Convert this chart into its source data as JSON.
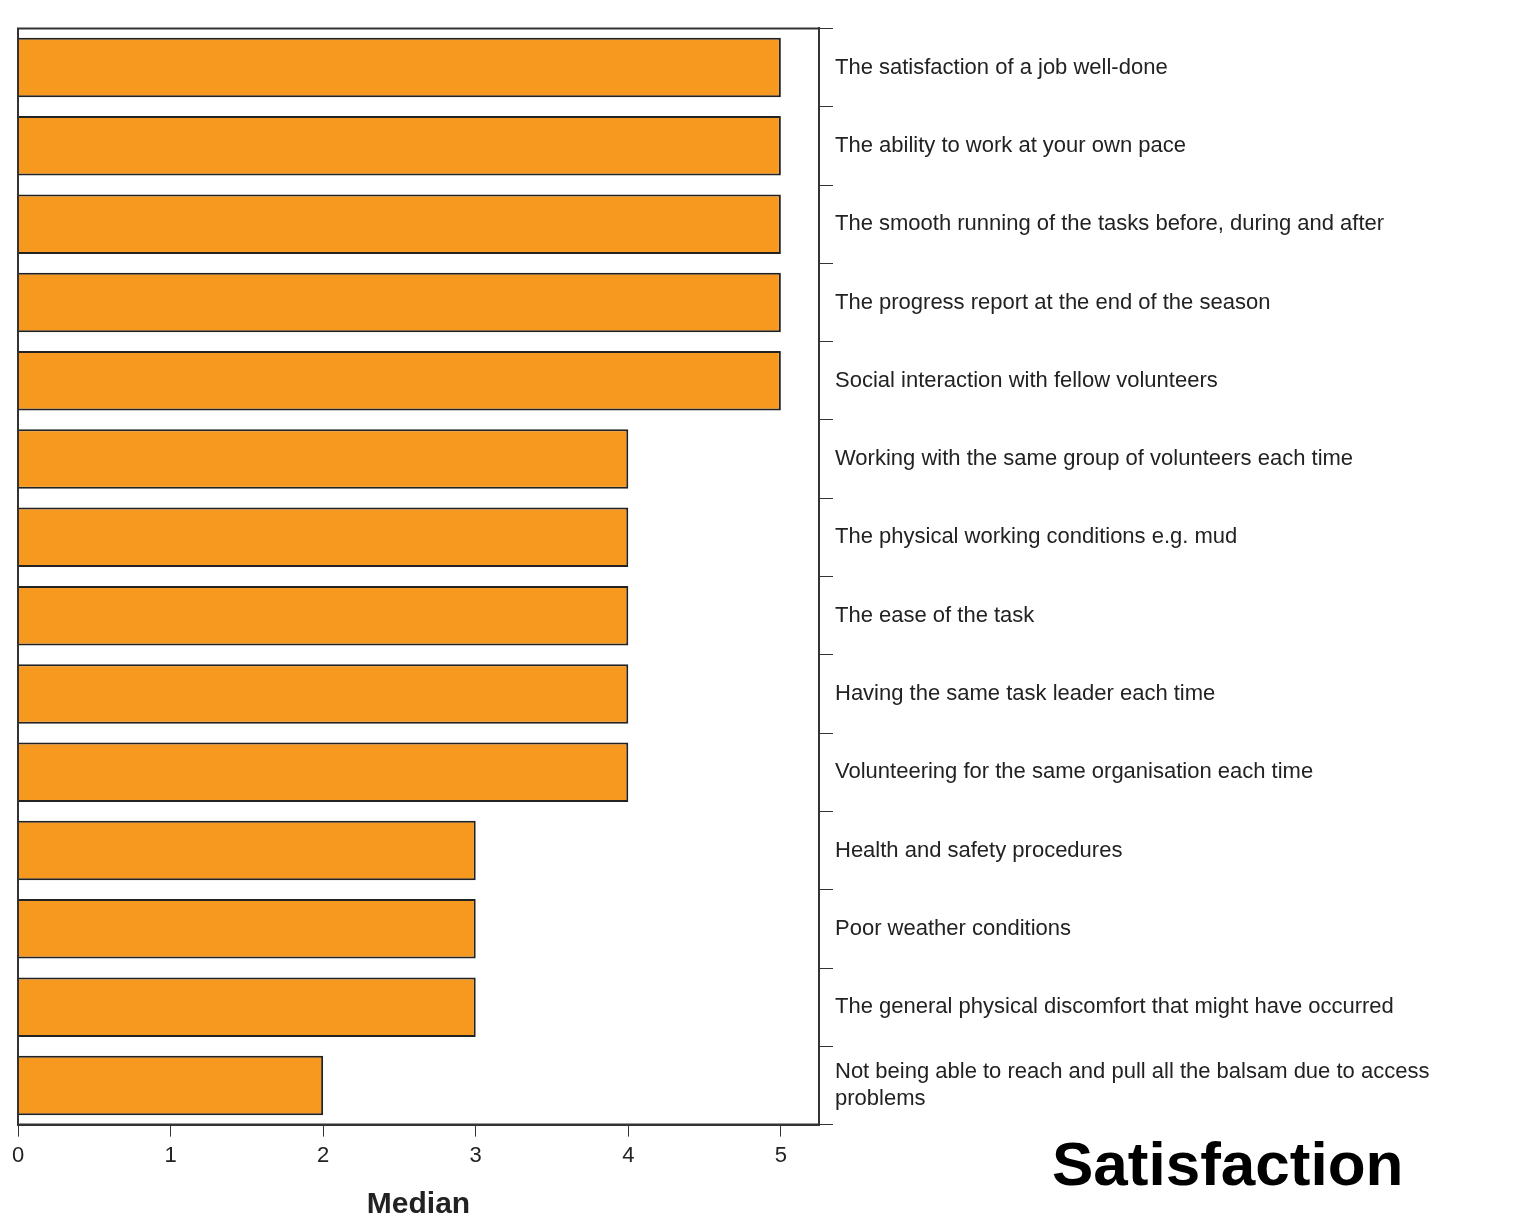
{
  "chart_data": {
    "type": "bar",
    "orientation": "horizontal",
    "title": "Satisfaction",
    "xlabel": "Median",
    "categories": [
      "The satisfaction of a job well-done",
      "The ability to work at your own pace",
      "The smooth running of the tasks before, during and after",
      "The progress report at the end of the season",
      "Social interaction with fellow volunteers",
      "Working with the same group of volunteers each time",
      "The physical working conditions e.g. mud",
      "The ease of the task",
      "Having the same task leader each time",
      "Volunteering for the same organisation each time",
      "Health and safety procedures",
      "Poor weather conditions",
      "The general physical discomfort that might have occurred",
      "Not being able to reach and pull all the balsam due to access problems"
    ],
    "values": [
      5,
      5,
      5,
      5,
      5,
      4,
      4,
      4,
      4,
      4,
      3,
      3,
      3,
      2
    ],
    "color": "#f7991f",
    "xlim": [
      0,
      5.25
    ],
    "xticks": [
      0,
      1,
      2,
      3,
      4,
      5
    ],
    "grid": false,
    "legend": false
  }
}
